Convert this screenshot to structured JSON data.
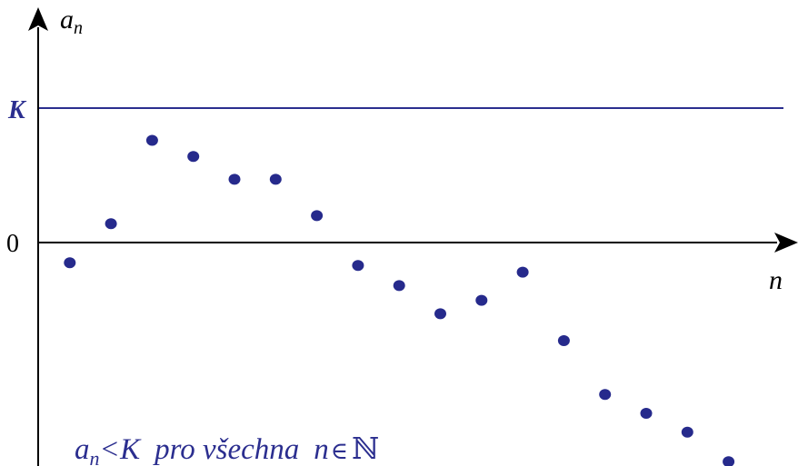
{
  "colors": {
    "axis": "#000000",
    "accent": "#2b2e8f",
    "point": "#262a8c"
  },
  "axes": {
    "y_label_base": "a",
    "y_label_sub": "n",
    "x_label": "n",
    "zero_label": "0"
  },
  "bound": {
    "label": "K",
    "value": 1.0
  },
  "chart_data": {
    "type": "scatter",
    "points": [
      {
        "n": 1,
        "a": -0.15
      },
      {
        "n": 2,
        "a": 0.14
      },
      {
        "n": 3,
        "a": 0.76
      },
      {
        "n": 4,
        "a": 0.64
      },
      {
        "n": 5,
        "a": 0.47
      },
      {
        "n": 6,
        "a": 0.47
      },
      {
        "n": 7,
        "a": 0.2
      },
      {
        "n": 8,
        "a": -0.17
      },
      {
        "n": 9,
        "a": -0.32
      },
      {
        "n": 10,
        "a": -0.53
      },
      {
        "n": 11,
        "a": -0.43
      },
      {
        "n": 12,
        "a": -0.22
      },
      {
        "n": 13,
        "a": -0.73
      },
      {
        "n": 14,
        "a": -1.13
      },
      {
        "n": 15,
        "a": -1.27
      },
      {
        "n": 16,
        "a": -1.41
      },
      {
        "n": 17,
        "a": -1.63
      }
    ]
  },
  "caption": {
    "a": "a",
    "sub_n": "n",
    "lt": "<",
    "K": "K",
    "pro": "pro všechna",
    "n": "n",
    "in": "∈",
    "N": "ℕ"
  }
}
